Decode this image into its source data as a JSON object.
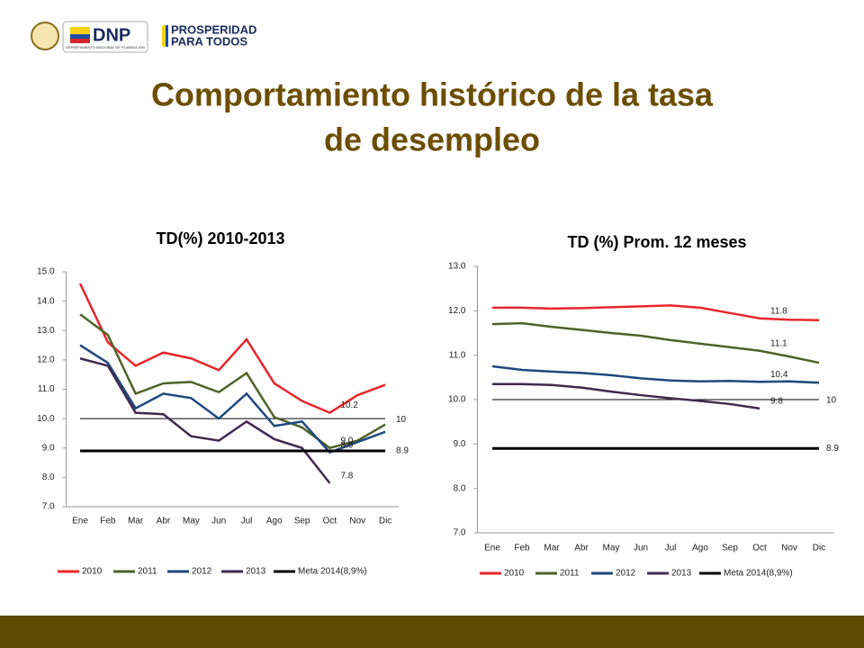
{
  "logos": {
    "dnp": "DNP",
    "dnp_sub": "DEPARTAMENTO NACIONAL DE PLANEACIÓN",
    "prosperidad": "PROSPERIDAD",
    "para_todos": "PARA TODOS"
  },
  "title_lines": [
    "Comportamiento histórico de la tasa",
    "de desempleo"
  ],
  "chart_data": [
    {
      "type": "line",
      "title": "TD(%) 2010-2013",
      "categories": [
        "Ene",
        "Feb",
        "Mar",
        "Abr",
        "May",
        "Jun",
        "Jul",
        "Ago",
        "Sep",
        "Oct",
        "Nov",
        "Dic"
      ],
      "ylim": [
        7,
        15
      ],
      "yticks": [
        {
          "value": 7,
          "label": "7.0"
        },
        {
          "value": 8,
          "label": "8.0"
        },
        {
          "value": 9,
          "label": "9.0"
        },
        {
          "value": 10,
          "label": "10.0"
        },
        {
          "value": 11,
          "label": "11.0"
        },
        {
          "value": 12,
          "label": "12.0"
        },
        {
          "value": 13,
          "label": "13.0"
        },
        {
          "value": 14,
          "label": "14.0"
        },
        {
          "value": 15,
          "label": "15.0"
        }
      ],
      "reference_lines": [
        10
      ],
      "series": [
        {
          "name": "2010",
          "color": "#e8262a",
          "values": [
            14.6,
            12.6,
            11.8,
            12.25,
            12.05,
            11.65,
            12.7,
            11.2,
            10.6,
            10.2,
            10.8,
            11.15
          ],
          "value_labels": [
            null,
            null,
            null,
            null,
            null,
            null,
            null,
            null,
            null,
            "10.2",
            null,
            null
          ]
        },
        {
          "name": "2011",
          "color": "#4f6228",
          "values": [
            13.55,
            12.85,
            10.85,
            11.2,
            11.25,
            10.9,
            11.55,
            10.05,
            9.7,
            9.0,
            9.25,
            9.8
          ],
          "value_labels": [
            null,
            null,
            null,
            null,
            null,
            null,
            null,
            null,
            null,
            "9.0",
            null,
            null
          ]
        },
        {
          "name": "2012",
          "color": "#1f497d",
          "values": [
            12.5,
            11.9,
            10.35,
            10.85,
            10.7,
            10.0,
            10.85,
            9.75,
            9.9,
            8.85,
            9.2,
            9.55
          ],
          "value_labels": [
            null,
            null,
            null,
            null,
            null,
            null,
            null,
            null,
            null,
            "8.9",
            null,
            null
          ]
        },
        {
          "name": "2013",
          "color": "#3f2a4f",
          "values": [
            12.05,
            11.8,
            10.2,
            10.15,
            9.4,
            9.25,
            9.9,
            9.3,
            9.0,
            7.8,
            null,
            null
          ],
          "value_labels": [
            null,
            null,
            null,
            null,
            null,
            null,
            null,
            null,
            null,
            "7.8",
            null,
            null
          ]
        },
        {
          "name": "Meta 2014(8,9%)",
          "color": "#000000",
          "values": [
            8.9,
            8.9,
            8.9,
            8.9,
            8.9,
            8.9,
            8.9,
            8.9,
            8.9,
            8.9,
            8.9,
            8.9
          ],
          "value_labels": [
            null,
            null,
            null,
            null,
            null,
            null,
            null,
            null,
            null,
            null,
            null,
            "8.9"
          ]
        }
      ]
    },
    {
      "type": "line",
      "title": "TD (%) Prom. 12 meses",
      "categories": [
        "Ene",
        "Feb",
        "Mar",
        "Abr",
        "May",
        "Jun",
        "Jul",
        "Ago",
        "Sep",
        "Oct",
        "Nov",
        "Dic"
      ],
      "ylim": [
        7,
        13
      ],
      "yticks": [
        {
          "value": 7,
          "label": "7.0"
        },
        {
          "value": 8,
          "label": "8.0"
        },
        {
          "value": 9,
          "label": "9.0"
        },
        {
          "value": 10,
          "label": "10.0"
        },
        {
          "value": 11,
          "label": "11.0"
        },
        {
          "value": 12,
          "label": "12.0"
        },
        {
          "value": 13,
          "label": "13.0"
        }
      ],
      "reference_lines": [
        10
      ],
      "series": [
        {
          "name": "2010",
          "color": "#e8262a",
          "values": [
            12.07,
            12.07,
            12.05,
            12.06,
            12.08,
            12.1,
            12.12,
            12.07,
            11.95,
            11.83,
            11.8,
            11.79
          ],
          "value_labels": [
            null,
            null,
            null,
            null,
            null,
            null,
            null,
            null,
            null,
            "11.8",
            null,
            null
          ]
        },
        {
          "name": "2011",
          "color": "#4f6228",
          "values": [
            11.7,
            11.72,
            11.64,
            11.57,
            11.5,
            11.44,
            11.34,
            11.26,
            11.18,
            11.1,
            10.97,
            10.83
          ],
          "value_labels": [
            null,
            null,
            null,
            null,
            null,
            null,
            null,
            null,
            null,
            "11.1",
            null,
            null
          ]
        },
        {
          "name": "2012",
          "color": "#1f497d",
          "values": [
            10.75,
            10.67,
            10.63,
            10.6,
            10.55,
            10.48,
            10.43,
            10.41,
            10.42,
            10.4,
            10.41,
            10.38
          ],
          "value_labels": [
            null,
            null,
            null,
            null,
            null,
            null,
            null,
            null,
            null,
            "10.4",
            null,
            null
          ]
        },
        {
          "name": "2013",
          "color": "#3f2a4f",
          "values": [
            10.35,
            10.35,
            10.33,
            10.27,
            10.18,
            10.1,
            10.03,
            9.97,
            9.9,
            9.8,
            null,
            null
          ],
          "value_labels": [
            null,
            null,
            null,
            null,
            null,
            null,
            null,
            null,
            null,
            "9.8",
            null,
            null
          ]
        },
        {
          "name": "Meta 2014(8,9%)",
          "color": "#000000",
          "values": [
            8.9,
            8.9,
            8.9,
            8.9,
            8.9,
            8.9,
            8.9,
            8.9,
            8.9,
            8.9,
            8.9,
            8.9
          ],
          "value_labels": [
            null,
            null,
            null,
            null,
            null,
            null,
            null,
            null,
            null,
            null,
            null,
            "8.9"
          ]
        }
      ]
    }
  ]
}
